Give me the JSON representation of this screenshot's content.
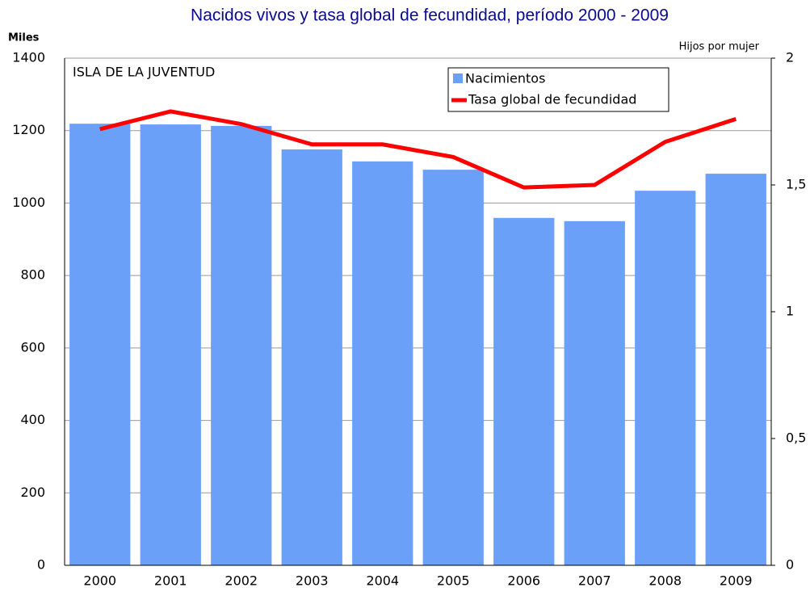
{
  "chart_data": {
    "type": "bar_line",
    "title": "Nacidos vivos y tasa global de fecundidad, período 2000 - 2009",
    "annotation": "ISLA DE LA JUVENTUD",
    "y_label": "Miles",
    "y2_label": "Hijos por mujer",
    "categories": [
      "2000",
      "2001",
      "2002",
      "2003",
      "2004",
      "2005",
      "2006",
      "2007",
      "2008",
      "2009"
    ],
    "series": [
      {
        "name": "Nacimientos",
        "type": "bar",
        "color": "#6aa0f8",
        "values": [
          1219,
          1217,
          1213,
          1148,
          1115,
          1092,
          959,
          950,
          1034,
          1081
        ]
      },
      {
        "name": "Tasa global de fecundidad",
        "type": "line",
        "axis": "y2",
        "color": "#ff0000",
        "values": [
          1.72,
          1.79,
          1.74,
          1.66,
          1.66,
          1.61,
          1.49,
          1.5,
          1.67,
          1.76
        ]
      }
    ],
    "ylim": [
      0,
      1400
    ],
    "yticks": [
      0,
      200,
      400,
      600,
      800,
      1000,
      1200,
      1400
    ],
    "y2lim": [
      0,
      2
    ],
    "y2ticks": [
      0,
      {
        "value": 0.5,
        "label": "0,5"
      },
      1,
      {
        "value": 1.5,
        "label": "1,5"
      },
      2
    ],
    "grid": true
  }
}
